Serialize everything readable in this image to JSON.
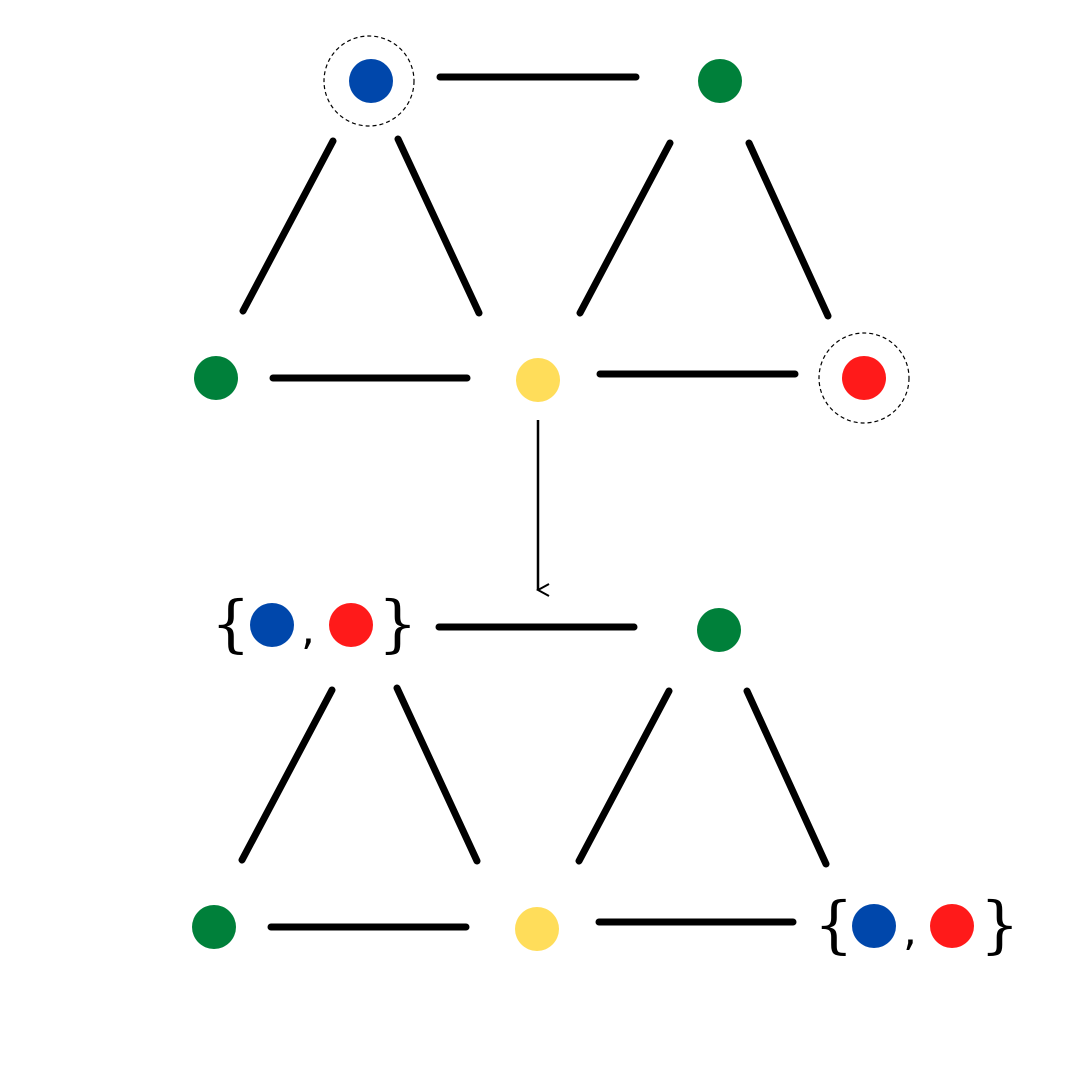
{
  "colors": {
    "blue": "#0047AB",
    "green": "#00803A",
    "yellow": "#FFDD5A",
    "red": "#FF1A1A",
    "line": "#000000"
  },
  "top_graph": {
    "nodes": [
      {
        "id": "top-left-apex",
        "color": "blue",
        "highlighted": true
      },
      {
        "id": "top-right-apex",
        "color": "green",
        "highlighted": false
      },
      {
        "id": "bottom-left",
        "color": "green",
        "highlighted": false
      },
      {
        "id": "bottom-middle",
        "color": "yellow",
        "highlighted": false
      },
      {
        "id": "bottom-right",
        "color": "red",
        "highlighted": true
      }
    ]
  },
  "bottom_graph": {
    "nodes": [
      {
        "id": "top-left-apex",
        "color_set": [
          "blue",
          "red"
        ]
      },
      {
        "id": "top-right-apex",
        "color": "green"
      },
      {
        "id": "bottom-left",
        "color": "green"
      },
      {
        "id": "bottom-middle",
        "color": "yellow"
      },
      {
        "id": "bottom-right",
        "color_set": [
          "blue",
          "red"
        ]
      }
    ]
  },
  "set_notation": {
    "open": "{",
    "separator": ",",
    "close": "}"
  }
}
